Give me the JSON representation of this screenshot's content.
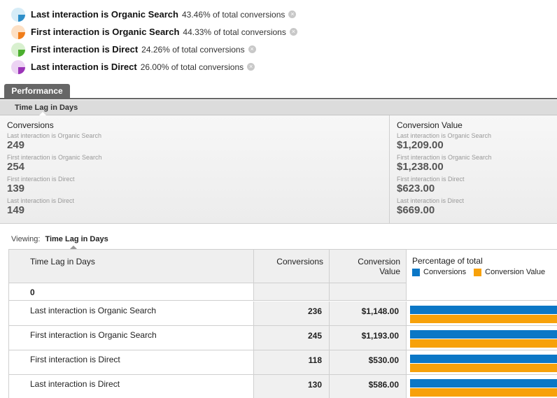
{
  "segments": [
    {
      "name": "Last interaction is Organic Search",
      "pct": "43.46% of total conversions",
      "color": "#2e8fc9",
      "light": "#d6ecf7"
    },
    {
      "name": "First interaction is Organic Search",
      "pct": "44.33% of total conversions",
      "color": "#f07d1a",
      "light": "#fde0c4"
    },
    {
      "name": "First interaction is Direct",
      "pct": "24.26% of total conversions",
      "color": "#4caf2f",
      "light": "#d8f0cf"
    },
    {
      "name": "Last interaction is Direct",
      "pct": "26.00% of total conversions",
      "color": "#9b34b8",
      "light": "#ecd3f3"
    }
  ],
  "remove_glyph": "×",
  "tab": {
    "label": "Performance"
  },
  "subheader": {
    "label": "Time Lag in Days"
  },
  "summary": {
    "conversions": {
      "title": "Conversions",
      "items": [
        {
          "label": "Last interaction is Organic Search",
          "value": "249"
        },
        {
          "label": "First interaction is Organic Search",
          "value": "254"
        },
        {
          "label": "First interaction is Direct",
          "value": "139"
        },
        {
          "label": "Last interaction is Direct",
          "value": "149"
        }
      ]
    },
    "value": {
      "title": "Conversion Value",
      "items": [
        {
          "label": "Last interaction is Organic Search",
          "value": "$1,209.00"
        },
        {
          "label": "First interaction is Organic Search",
          "value": "$1,238.00"
        },
        {
          "label": "First interaction is Direct",
          "value": "$623.00"
        },
        {
          "label": "Last interaction is Direct",
          "value": "$669.00"
        }
      ]
    }
  },
  "viewing": {
    "prefix": "Viewing:",
    "selected": "Time Lag in Days"
  },
  "table": {
    "headers": {
      "name": "Time Lag in Days",
      "conversions": "Conversions",
      "value_line1": "Conversion",
      "value_line2": "Value",
      "pct": "Percentage of total",
      "legend_conv": "Conversions",
      "legend_val": "Conversion Value"
    },
    "colors": {
      "conv": "#0b77c6",
      "val": "#f7a10a"
    },
    "group_label": "0",
    "rows": [
      {
        "name": "Last interaction is Organic Search",
        "conversions": "236",
        "value": "$1,148.00",
        "conv_pct": 1.0,
        "val_pct": 1.0
      },
      {
        "name": "First interaction is Organic Search",
        "conversions": "245",
        "value": "$1,193.00",
        "conv_pct": 1.0,
        "val_pct": 1.0
      },
      {
        "name": "First interaction is Direct",
        "conversions": "118",
        "value": "$530.00",
        "conv_pct": 1.0,
        "val_pct": 1.0
      },
      {
        "name": "Last interaction is Direct",
        "conversions": "130",
        "value": "$586.00",
        "conv_pct": 1.0,
        "val_pct": 1.0
      }
    ]
  }
}
